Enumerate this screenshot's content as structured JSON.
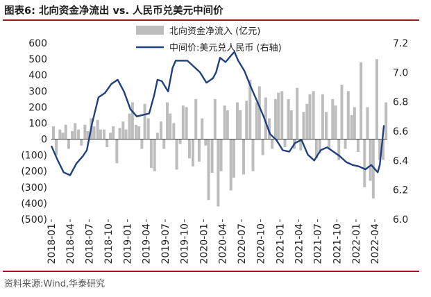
{
  "title": "图表6:  北向资金净流出 vs. 人民币兑美元中间价",
  "source": "资料来源:Wind,华泰研究",
  "colors": {
    "bars": "#bdbdbd",
    "line": "#1f3f7f",
    "rule": "#9b1b1b",
    "text": "#222222"
  },
  "chart_data": {
    "type": "bar+line",
    "legend": [
      "北向资金净流入 (亿元)",
      "中间价:美元兑人民币 (右轴)"
    ],
    "legend_position": "top-center",
    "left_axis": {
      "min": -500,
      "max": 600,
      "ticks": [
        "600",
        "500",
        "400",
        "300",
        "200",
        "100",
        "0",
        "(100)",
        "(200)",
        "(300)",
        "(400)",
        "(500)"
      ]
    },
    "right_axis": {
      "min": 6.0,
      "max": 7.2,
      "ticks": [
        "7.2",
        "7.0",
        "6.8",
        "6.6",
        "6.4",
        "6.2",
        "6.0"
      ]
    },
    "x_axis": {
      "ticks": [
        "2018-01",
        "2018-04",
        "2018-07",
        "2018-10",
        "2019-01",
        "2019-04",
        "2019-07",
        "2019-10",
        "2020-01",
        "2020-04",
        "2020-07",
        "2020-10",
        "2021-01",
        "2021-04",
        "2021-07",
        "2021-10",
        "2022-01",
        "2022-04"
      ],
      "start": "2018-01-01",
      "end": "2022-05-31"
    },
    "series": [
      {
        "name": "北向资金净流入 (亿元)",
        "type": "bar",
        "x": [
          "2018-01-01",
          "2018-01-15",
          "2018-02-01",
          "2018-02-15",
          "2018-03-01",
          "2018-03-15",
          "2018-04-01",
          "2018-04-15",
          "2018-05-01",
          "2018-05-15",
          "2018-06-01",
          "2018-06-15",
          "2018-07-01",
          "2018-07-15",
          "2018-08-01",
          "2018-08-15",
          "2018-09-01",
          "2018-09-15",
          "2018-10-01",
          "2018-10-15",
          "2018-11-01",
          "2018-11-15",
          "2018-12-01",
          "2018-12-15",
          "2019-01-01",
          "2019-01-15",
          "2019-02-01",
          "2019-02-15",
          "2019-03-01",
          "2019-03-15",
          "2019-04-01",
          "2019-04-15",
          "2019-05-01",
          "2019-05-15",
          "2019-06-01",
          "2019-06-15",
          "2019-07-01",
          "2019-07-15",
          "2019-08-01",
          "2019-08-15",
          "2019-09-01",
          "2019-09-15",
          "2019-10-01",
          "2019-10-15",
          "2019-11-01",
          "2019-11-15",
          "2019-12-01",
          "2019-12-15",
          "2020-01-01",
          "2020-01-15",
          "2020-02-01",
          "2020-02-15",
          "2020-03-01",
          "2020-03-15",
          "2020-04-01",
          "2020-04-15",
          "2020-05-01",
          "2020-05-15",
          "2020-06-01",
          "2020-06-15",
          "2020-07-01",
          "2020-07-15",
          "2020-08-01",
          "2020-08-15",
          "2020-09-01",
          "2020-09-15",
          "2020-10-01",
          "2020-10-15",
          "2020-11-01",
          "2020-11-15",
          "2020-12-01",
          "2020-12-15",
          "2021-01-01",
          "2021-01-15",
          "2021-02-01",
          "2021-02-15",
          "2021-03-01",
          "2021-03-15",
          "2021-04-01",
          "2021-04-15",
          "2021-05-01",
          "2021-05-15",
          "2021-06-01",
          "2021-06-15",
          "2021-07-01",
          "2021-07-15",
          "2021-08-01",
          "2021-08-15",
          "2021-09-01",
          "2021-09-15",
          "2021-10-01",
          "2021-10-15",
          "2021-11-01",
          "2021-11-15",
          "2021-12-01",
          "2021-12-15",
          "2022-01-01",
          "2022-01-15",
          "2022-02-01",
          "2022-02-15",
          "2022-03-01",
          "2022-03-15",
          "2022-04-01",
          "2022-04-15",
          "2022-05-01",
          "2022-05-15"
        ],
        "values": [
          80,
          -100,
          60,
          40,
          90,
          -60,
          50,
          100,
          60,
          -40,
          90,
          50,
          130,
          80,
          120,
          60,
          60,
          -50,
          40,
          80,
          -150,
          70,
          110,
          60,
          160,
          230,
          90,
          80,
          -60,
          220,
          130,
          -180,
          -200,
          40,
          110,
          -60,
          230,
          160,
          100,
          -190,
          -30,
          210,
          200,
          -120,
          -170,
          250,
          -140,
          130,
          -40,
          -380,
          -210,
          250,
          -420,
          -200,
          210,
          180,
          -320,
          -240,
          230,
          180,
          -220,
          240,
          370,
          -200,
          230,
          330,
          -100,
          260,
          130,
          -60,
          250,
          290,
          300,
          -50,
          250,
          180,
          -60,
          320,
          -70,
          170,
          220,
          280,
          300,
          -120,
          -90,
          280,
          170,
          -60,
          250,
          210,
          -130,
          340,
          -60,
          300,
          150,
          200,
          -80,
          480,
          -300,
          200,
          -260,
          -370,
          500,
          -130,
          -130,
          230
        ]
      },
      {
        "name": "中间价:美元兑人民币 (右轴)",
        "type": "line",
        "axis": "right",
        "x": [
          "2018-01-01",
          "2018-02-01",
          "2018-03-01",
          "2018-04-01",
          "2018-05-01",
          "2018-06-01",
          "2018-06-20",
          "2018-07-15",
          "2018-08-15",
          "2018-09-15",
          "2018-10-15",
          "2018-11-15",
          "2018-12-15",
          "2019-01-15",
          "2019-02-15",
          "2019-03-15",
          "2019-04-15",
          "2019-05-10",
          "2019-05-25",
          "2019-06-15",
          "2019-07-15",
          "2019-08-05",
          "2019-08-20",
          "2019-09-15",
          "2019-10-15",
          "2019-11-15",
          "2019-12-15",
          "2020-01-15",
          "2020-02-15",
          "2020-03-01",
          "2020-03-20",
          "2020-04-15",
          "2020-05-15",
          "2020-05-28",
          "2020-06-15",
          "2020-07-15",
          "2020-08-15",
          "2020-09-15",
          "2020-10-15",
          "2020-11-15",
          "2020-12-15",
          "2021-01-15",
          "2021-02-15",
          "2021-03-15",
          "2021-04-15",
          "2021-05-15",
          "2021-06-15",
          "2021-07-15",
          "2021-08-15",
          "2021-09-15",
          "2021-10-15",
          "2021-11-15",
          "2021-12-15",
          "2022-01-15",
          "2022-02-15",
          "2022-03-15",
          "2022-04-15",
          "2022-04-25",
          "2022-05-15"
        ],
        "values": [
          6.5,
          6.4,
          6.32,
          6.3,
          6.38,
          6.43,
          6.47,
          6.65,
          6.83,
          6.86,
          6.92,
          6.95,
          6.87,
          6.75,
          6.7,
          6.71,
          6.72,
          6.85,
          6.95,
          6.94,
          6.87,
          7.03,
          7.08,
          7.08,
          7.08,
          7.04,
          7.0,
          6.93,
          6.96,
          7.0,
          7.1,
          7.07,
          7.12,
          7.14,
          7.08,
          7.01,
          6.9,
          6.8,
          6.7,
          6.58,
          6.54,
          6.47,
          6.46,
          6.52,
          6.54,
          6.44,
          6.4,
          6.47,
          6.49,
          6.46,
          6.43,
          6.39,
          6.37,
          6.36,
          6.34,
          6.37,
          6.32,
          6.37,
          6.64
        ]
      }
    ]
  }
}
